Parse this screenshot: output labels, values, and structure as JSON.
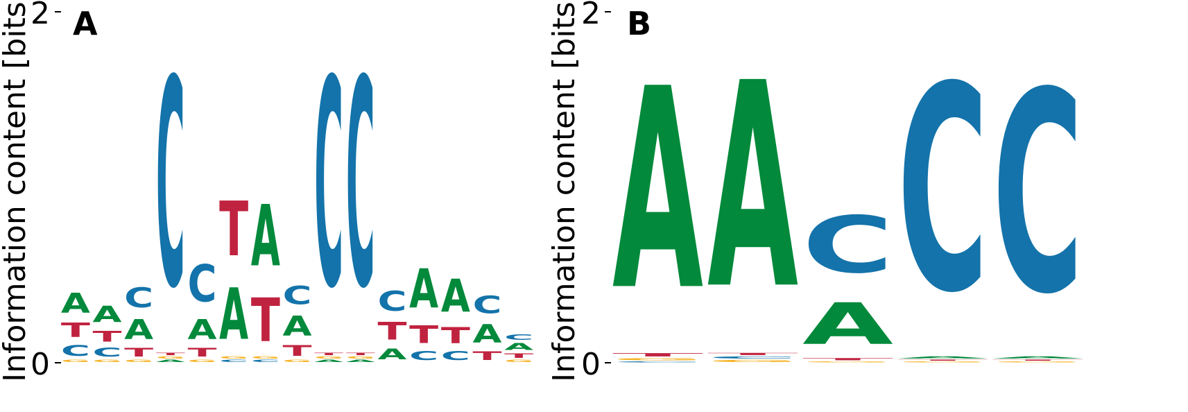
{
  "colors": {
    "A": "#02893b",
    "C": "#1473aa",
    "G": "#f5b328",
    "T": "#c0233f"
  },
  "chart_data": [
    {
      "type": "sequence-logo",
      "panel_label": "A",
      "ylabel": "Information content [bits]",
      "ylim": [
        0,
        2
      ],
      "yticks": [
        "0",
        "2"
      ],
      "positions": [
        [
          [
            "G",
            0.02
          ],
          [
            "C",
            0.1
          ],
          [
            "T",
            0.13
          ],
          [
            "A",
            0.18
          ]
        ],
        [
          [
            "G",
            0.02
          ],
          [
            "C",
            0.08
          ],
          [
            "T",
            0.1
          ],
          [
            "A",
            0.15
          ]
        ],
        [
          [
            "G",
            0.02
          ],
          [
            "T",
            0.08
          ],
          [
            "A",
            0.18
          ],
          [
            "C",
            0.18
          ]
        ],
        [
          [
            "A",
            0.02
          ],
          [
            "G",
            0.02
          ],
          [
            "T",
            0.02
          ],
          [
            "C",
            1.9
          ]
        ],
        [
          [
            "G",
            0.02
          ],
          [
            "T",
            0.08
          ],
          [
            "A",
            0.18
          ],
          [
            "C",
            0.34
          ]
        ],
        [
          [
            "C",
            0.02
          ],
          [
            "G",
            0.02
          ],
          [
            "A",
            0.47
          ],
          [
            "T",
            0.5
          ]
        ],
        [
          [
            "C",
            0.02
          ],
          [
            "G",
            0.02
          ],
          [
            "T",
            0.4
          ],
          [
            "A",
            0.56
          ]
        ],
        [
          [
            "G",
            0.02
          ],
          [
            "T",
            0.1
          ],
          [
            "A",
            0.18
          ],
          [
            "C",
            0.17
          ]
        ],
        [
          [
            "A",
            0.02
          ],
          [
            "G",
            0.02
          ],
          [
            "T",
            0.02
          ],
          [
            "C",
            1.9
          ]
        ],
        [
          [
            "A",
            0.02
          ],
          [
            "G",
            0.02
          ],
          [
            "T",
            0.02
          ],
          [
            "C",
            1.9
          ]
        ],
        [
          [
            "A",
            0.1
          ],
          [
            "T",
            0.16
          ],
          [
            "C",
            0.18
          ]
        ],
        [
          [
            "C",
            0.08
          ],
          [
            "T",
            0.16
          ],
          [
            "A",
            0.36
          ]
        ],
        [
          [
            "C",
            0.08
          ],
          [
            "T",
            0.15
          ],
          [
            "A",
            0.3
          ]
        ],
        [
          [
            "T",
            0.08
          ],
          [
            "A",
            0.17
          ],
          [
            "C",
            0.16
          ]
        ],
        [
          [
            "G",
            0.02
          ],
          [
            "T",
            0.04
          ],
          [
            "A",
            0.06
          ],
          [
            "C",
            0.05
          ]
        ]
      ]
    },
    {
      "type": "sequence-logo",
      "panel_label": "B",
      "ylabel": "Information content [bits]",
      "ylim": [
        0,
        2
      ],
      "yticks": [
        "0",
        "2"
      ],
      "positions": [
        [
          [
            "C",
            0.01
          ],
          [
            "G",
            0.02
          ],
          [
            "T",
            0.03
          ],
          [
            "A",
            1.84
          ]
        ],
        [
          [
            "G",
            0.02
          ],
          [
            "C",
            0.02
          ],
          [
            "T",
            0.02
          ],
          [
            "A",
            1.88
          ]
        ],
        [
          [
            "G",
            0.01
          ],
          [
            "T",
            0.02
          ],
          [
            "A",
            0.38
          ],
          [
            "C",
            0.52
          ]
        ],
        [
          [
            "G",
            0.01
          ],
          [
            "T",
            0.01
          ],
          [
            "A",
            0.02
          ],
          [
            "C",
            1.88
          ]
        ],
        [
          [
            "G",
            0.01
          ],
          [
            "T",
            0.01
          ],
          [
            "A",
            0.02
          ],
          [
            "C",
            1.84
          ]
        ]
      ]
    }
  ]
}
